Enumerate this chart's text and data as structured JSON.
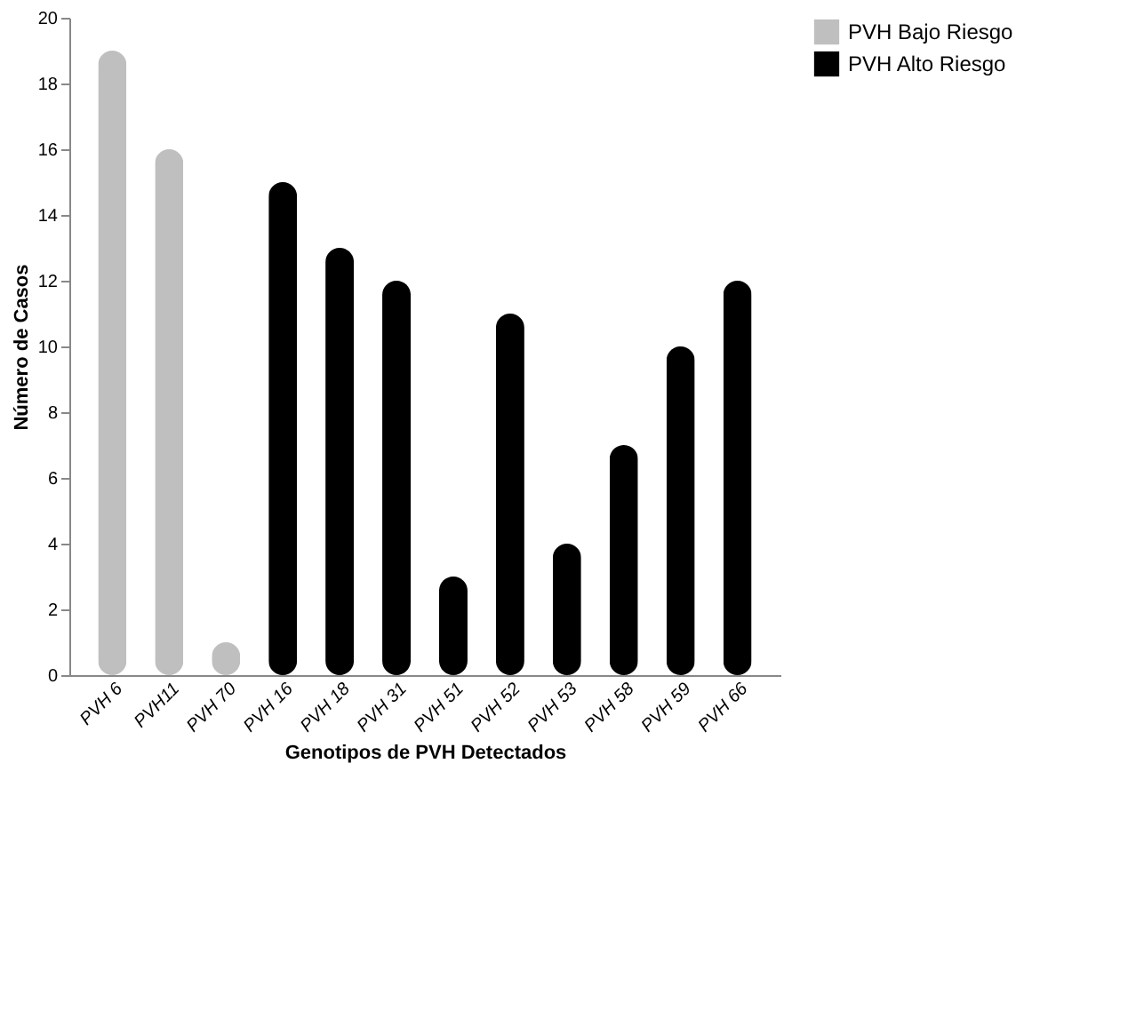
{
  "chart_data": {
    "type": "bar",
    "xlabel": "Genotipos de PVH Detectados",
    "ylabel": "Número de Casos",
    "categories": [
      "PVH 6",
      "PVH11",
      "PVH 70",
      "PVH 16",
      "PVH 18",
      "PVH 31",
      "PVH 51",
      "PVH 52",
      "PVH 53",
      "PVH 58",
      "PVH 59",
      "PVH 66"
    ],
    "series": [
      {
        "name": "PVH Bajo Riesgo",
        "color": "#bfbfbf",
        "values": [
          19,
          16,
          1,
          null,
          null,
          null,
          null,
          null,
          null,
          null,
          null,
          null
        ]
      },
      {
        "name": "PVH Alto Riesgo",
        "color": "#000000",
        "values": [
          null,
          null,
          null,
          15,
          13,
          12,
          3,
          11,
          4,
          7,
          10,
          12
        ]
      }
    ],
    "ylim": [
      0,
      20
    ],
    "yticks": [
      0,
      2,
      4,
      6,
      8,
      10,
      12,
      14,
      16,
      18,
      20
    ],
    "grid": false,
    "legend": "right"
  }
}
